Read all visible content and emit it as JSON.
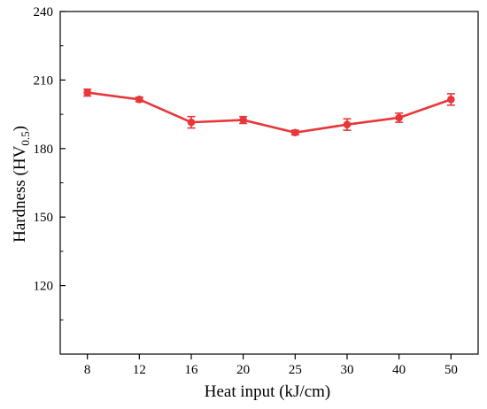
{
  "chart_data": {
    "type": "line",
    "categories": [
      "8",
      "12",
      "16",
      "20",
      "25",
      "30",
      "40",
      "50"
    ],
    "series": [
      {
        "values": [
          204.5,
          201.5,
          191.5,
          192.5,
          187,
          190.5,
          193.5,
          201.5
        ],
        "errors": [
          1.5,
          1.0,
          2.5,
          1.5,
          1.0,
          2.5,
          2.0,
          2.5
        ],
        "color": "#e8373a"
      }
    ],
    "xlabel": "Heat input (kJ/cm)",
    "ylabel": "Hardness (HV",
    "ylabel_sub": "0.5",
    "ylabel_end": ")",
    "ylim": [
      90,
      240
    ],
    "yticks": [
      120,
      150,
      180,
      210,
      240
    ],
    "grid": false,
    "legend": "none"
  }
}
